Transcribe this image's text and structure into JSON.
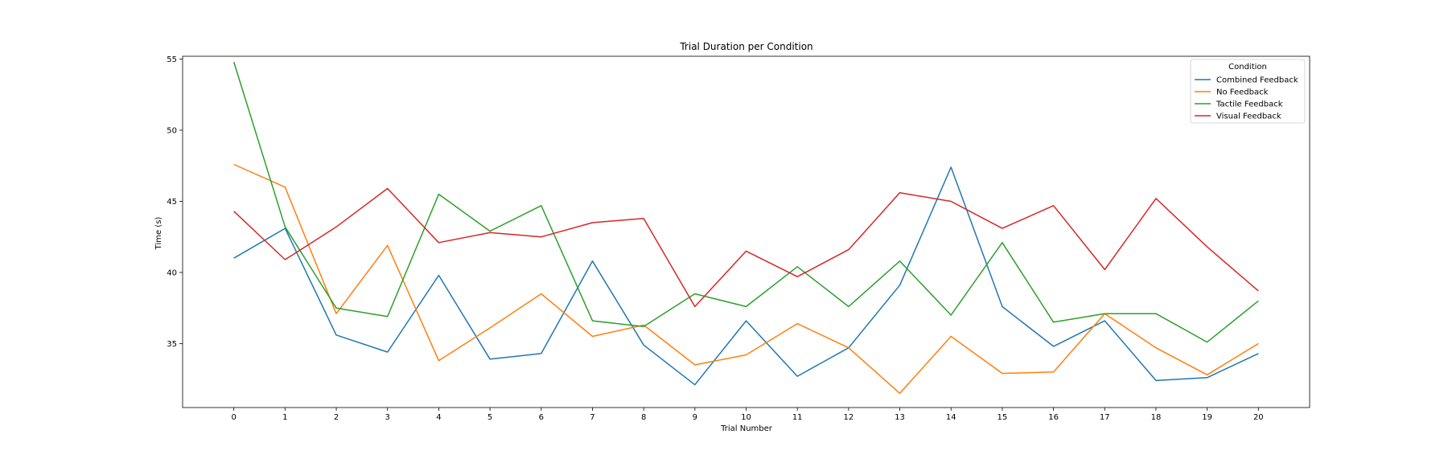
{
  "chart_data": {
    "type": "line",
    "title": "Trial Duration per Condition",
    "xlabel": "Trial Number",
    "ylabel": "Time (s)",
    "x": [
      0,
      1,
      2,
      3,
      4,
      5,
      6,
      7,
      8,
      9,
      10,
      11,
      12,
      13,
      14,
      15,
      16,
      17,
      18,
      19,
      20
    ],
    "xlim": [
      -1,
      21
    ],
    "ylim": [
      30.5,
      55.2
    ],
    "yticks": [
      35,
      40,
      45,
      50,
      55
    ],
    "grid": false,
    "legend": {
      "title": "Condition",
      "placement": "top-right"
    },
    "series": [
      {
        "name": "Combined Feedback",
        "color": "#1f77b4",
        "values": [
          41.0,
          43.1,
          35.6,
          34.4,
          39.8,
          33.9,
          34.3,
          40.8,
          34.9,
          32.1,
          36.6,
          32.7,
          34.7,
          39.1,
          47.4,
          37.6,
          34.8,
          36.6,
          32.4,
          32.6,
          34.3
        ]
      },
      {
        "name": "No Feedback",
        "color": "#ff7f0e",
        "values": [
          47.6,
          46.0,
          37.1,
          41.9,
          33.8,
          36.1,
          38.5,
          35.5,
          36.3,
          33.5,
          34.2,
          36.4,
          34.7,
          31.5,
          35.5,
          32.9,
          33.0,
          37.1,
          34.7,
          32.8,
          35.0
        ]
      },
      {
        "name": "Tactile Feedback",
        "color": "#2ca02c",
        "values": [
          54.8,
          43.2,
          37.5,
          36.9,
          45.5,
          42.9,
          44.7,
          36.6,
          36.2,
          38.5,
          37.6,
          40.4,
          37.6,
          40.8,
          37.0,
          42.1,
          36.5,
          37.1,
          37.1,
          35.1,
          38.0
        ]
      },
      {
        "name": "Visual Feedback",
        "color": "#d62728",
        "values": [
          44.3,
          40.9,
          43.2,
          45.9,
          42.1,
          42.8,
          42.5,
          43.5,
          43.8,
          37.6,
          41.5,
          39.7,
          41.6,
          45.6,
          45.0,
          43.1,
          44.7,
          40.2,
          45.2,
          41.8,
          38.7
        ]
      }
    ]
  }
}
